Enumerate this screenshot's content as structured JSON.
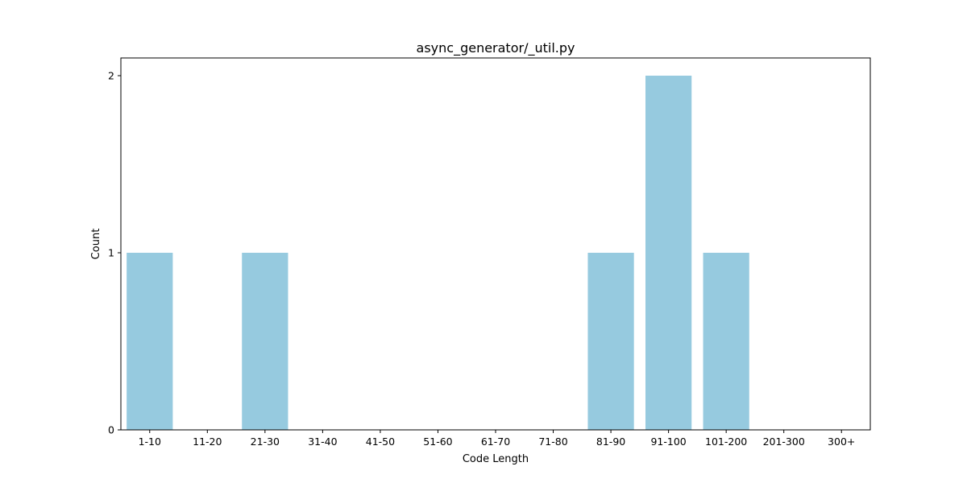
{
  "chart_data": {
    "type": "bar",
    "title": "async_generator/_util.py",
    "xlabel": "Code Length",
    "ylabel": "Count",
    "categories": [
      "1-10",
      "11-20",
      "21-30",
      "31-40",
      "41-50",
      "51-60",
      "61-70",
      "71-80",
      "81-90",
      "91-100",
      "101-200",
      "201-300",
      "300+"
    ],
    "values": [
      1,
      0,
      1,
      0,
      0,
      0,
      0,
      0,
      1,
      2,
      1,
      0,
      0
    ],
    "yticks": [
      "0",
      "1",
      "2"
    ],
    "ylim": [
      0,
      2.1
    ],
    "bar_color": "#96cadf",
    "grid": false,
    "legend": "none"
  }
}
